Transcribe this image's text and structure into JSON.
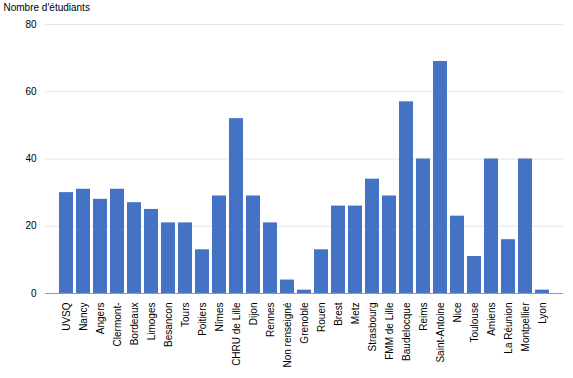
{
  "chart_data": {
    "type": "bar",
    "categories": [
      "UVSQ",
      "Nancy",
      "Angers",
      "Clermont-",
      "Bordeaux",
      "Limoges",
      "Besancon",
      "Tours",
      "Poitiers",
      "Nîmes",
      "CHRU de Lille",
      "Dijon",
      "Rennes",
      "Non renseigné",
      "Grenoble",
      "Rouen",
      "Brest",
      "Metz",
      "Strasbourg",
      "FMM de Lille",
      "Baudelocque",
      "Reims",
      "Saint-Antoine",
      "Nice",
      "Toulouse",
      "Amiens",
      "La Réunion",
      "Montpellier",
      "Lyon"
    ],
    "values": [
      30,
      31,
      28,
      31,
      27,
      25,
      21,
      21,
      13,
      29,
      52,
      29,
      21,
      4,
      1,
      13,
      26,
      26,
      34,
      29,
      57,
      40,
      69,
      23,
      11,
      40,
      16,
      40,
      1
    ],
    "color": "#4472c4",
    "ylabel": "Nombre d'étudiants",
    "ylim": [
      0,
      80
    ],
    "yticks": [
      0,
      20,
      40,
      60,
      80
    ],
    "grid": true
  }
}
